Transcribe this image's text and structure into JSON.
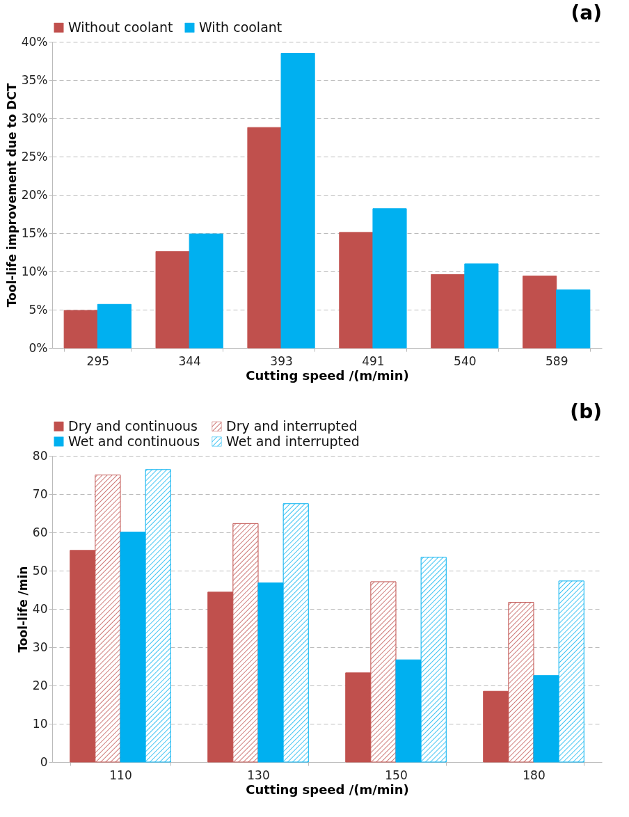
{
  "chart_data": [
    {
      "type": "bar",
      "annotations": [
        "(a)"
      ],
      "xlabel": "Cutting speed /(m/min)",
      "ylabel": "Tool-life improvement due to DCT",
      "categories": [
        "295",
        "344",
        "393",
        "491",
        "540",
        "589"
      ],
      "series": [
        {
          "name": "Without coolant",
          "color": "#c0504d",
          "values": [
            4.9,
            12.6,
            28.8,
            15.1,
            9.6,
            9.4
          ]
        },
        {
          "name": "With coolant",
          "color": "#00b0f0",
          "values": [
            5.7,
            14.9,
            38.5,
            18.2,
            11.0,
            7.6
          ]
        }
      ],
      "ylim": [
        0,
        40
      ],
      "yticks": [
        {
          "value": 0,
          "label": "0%"
        },
        {
          "value": 5,
          "label": "5%"
        },
        {
          "value": 10,
          "label": "10%"
        },
        {
          "value": 15,
          "label": "15%"
        },
        {
          "value": 20,
          "label": "20%"
        },
        {
          "value": 25,
          "label": "25%"
        },
        {
          "value": 30,
          "label": "30%"
        },
        {
          "value": 35,
          "label": "35%"
        },
        {
          "value": 40,
          "label": "40%"
        }
      ],
      "grid": "y",
      "legend": "top"
    },
    {
      "type": "bar",
      "annotations": [
        "(b)"
      ],
      "xlabel": "Cutting speed /(m/min)",
      "ylabel": "Tool-life /min",
      "categories": [
        "110",
        "130",
        "150",
        "180"
      ],
      "series": [
        {
          "name": "Dry and continuous",
          "color": "#c0504d",
          "values": [
            55.3,
            44.4,
            23.3,
            18.5
          ]
        },
        {
          "name": "Dry and interrupted",
          "color": "#c0504d",
          "values": [
            75.0,
            62.3,
            47.1,
            41.7
          ]
        },
        {
          "name": "Wet and continuous",
          "color": "#00b0f0",
          "values": [
            60.1,
            46.8,
            26.7,
            22.6
          ]
        },
        {
          "name": "Wet and interrupted",
          "color": "#00b0f0",
          "values": [
            76.4,
            67.5,
            53.5,
            47.3
          ]
        }
      ],
      "ylim": [
        0,
        80
      ],
      "yticks": [
        0,
        10,
        20,
        30,
        40,
        50,
        60,
        70,
        80
      ],
      "grid": "y",
      "legend": "top"
    }
  ]
}
